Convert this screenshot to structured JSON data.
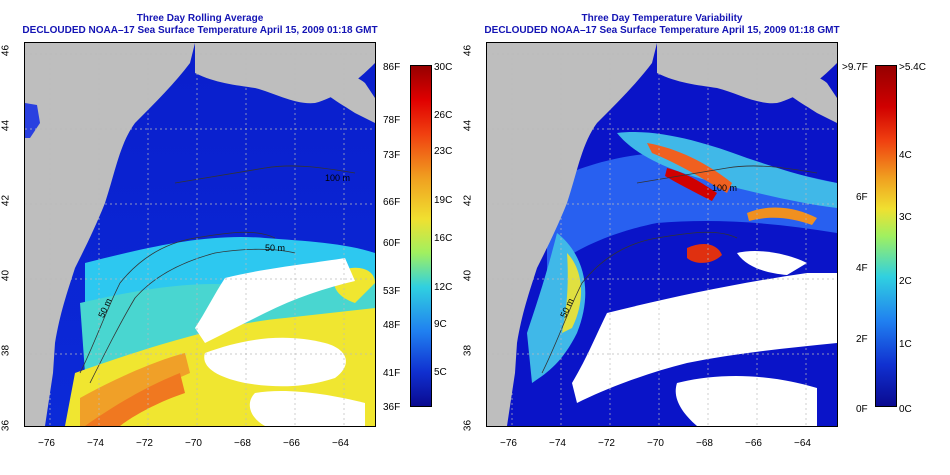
{
  "left_panel": {
    "title_line1": "Three Day Rolling Average",
    "title_line2": "DECLOUDED NOAA–17 Sea Surface Temperature April 15, 2009 01:18 GMT",
    "x_ticks": [
      "−76",
      "−74",
      "−72",
      "−70",
      "−68",
      "−66",
      "−64"
    ],
    "y_ticks": [
      "36",
      "38",
      "40",
      "42",
      "44",
      "46"
    ],
    "contour_labels": [
      "50 m",
      "100 m",
      "50 m"
    ],
    "colorbar_f": [
      "86F",
      "78F",
      "73F",
      "66F",
      "60F",
      "53F",
      "48F",
      "41F",
      "36F"
    ],
    "colorbar_c": [
      "30C",
      "26C",
      "23C",
      "19C",
      "16C",
      "12C",
      "9C",
      "5C"
    ]
  },
  "right_panel": {
    "title_line1": "Three Day Temperature Variability",
    "title_line2": "DECLOUDED NOAA–17 Sea Surface Temperature April 15, 2009 01:18 GMT",
    "x_ticks": [
      "−76",
      "−74",
      "−72",
      "−70",
      "−68",
      "−66",
      "−64"
    ],
    "y_ticks": [
      "36",
      "38",
      "40",
      "42",
      "44",
      "46"
    ],
    "contour_labels": [
      "50 m",
      "100 m"
    ],
    "colorbar_f": [
      ">9.7F",
      "6F",
      "4F",
      "2F",
      "0F"
    ],
    "colorbar_c": [
      ">5.4C",
      "4C",
      "3C",
      "2C",
      "1C",
      "0C"
    ]
  },
  "colors": {
    "title": "#1414b4",
    "land": "#bebebe",
    "cloud": "#ffffff"
  }
}
